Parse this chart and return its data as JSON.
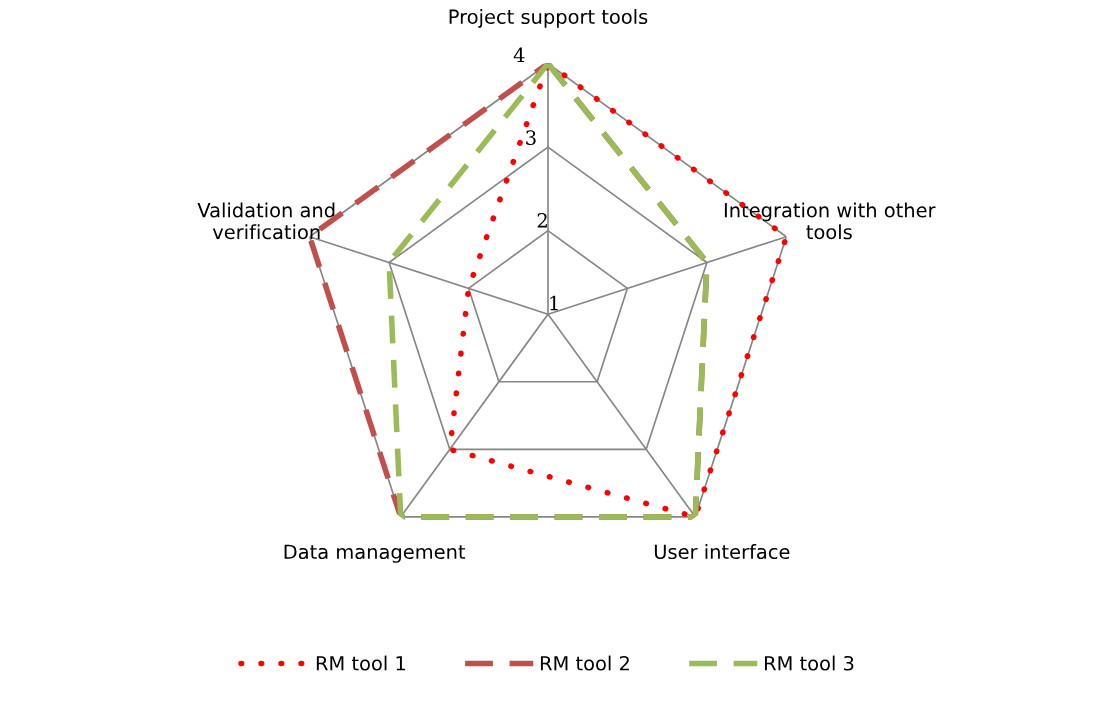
{
  "chart_data": {
    "type": "radar",
    "categories": [
      "Project support tools",
      "Integration with other\ntools",
      "User interface",
      "Data management",
      "Validation and\nverification"
    ],
    "series": [
      {
        "name": "RM tool 1",
        "color": "#ff0000",
        "line_style": "dotted",
        "values": [
          4,
          4,
          4,
          3,
          2
        ]
      },
      {
        "name": "RM tool 2",
        "color": "#c0504d",
        "line_style": "dashed",
        "values": [
          4,
          3,
          4,
          4,
          4
        ]
      },
      {
        "name": "RM tool 3",
        "color": "#9bbb59",
        "line_style": "dashed",
        "values": [
          4,
          3,
          4,
          4,
          3
        ]
      }
    ],
    "ylim": [
      1,
      4
    ],
    "yticks": [
      1,
      2,
      3,
      4
    ],
    "grid": true,
    "legend": "bottom",
    "marker": "none"
  }
}
